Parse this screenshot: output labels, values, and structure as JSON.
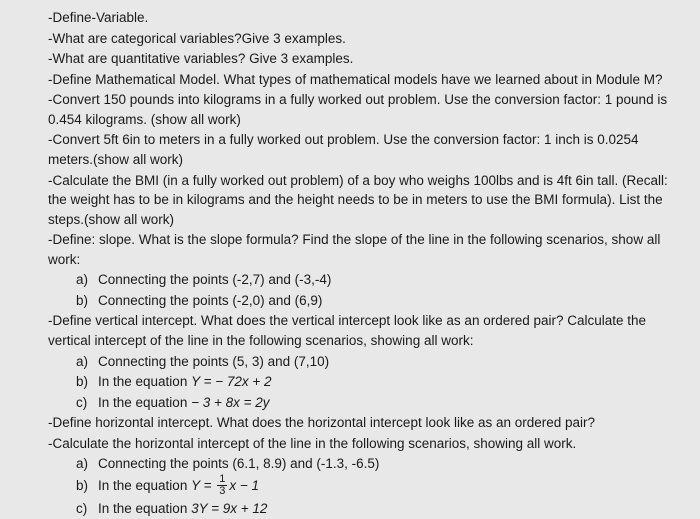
{
  "background_color": "#e8e8e8",
  "text_color": "#1a1a1a",
  "font_size": 13.5,
  "lines": {
    "l1": "-Define-Variable.",
    "l2": "-What are categorical variables?Give 3 examples.",
    "l3": "-What are quantitative variables? Give 3 examples.",
    "l4": "-Define Mathematical Model. What types of mathematical models have we learned about in Module M?",
    "l5": "-Convert 150 pounds into kilograms in a fully worked out problem. Use the conversion factor: 1 pound is 0.454 kilograms. (show all work)",
    "l6": "-Convert 5ft 6in to meters in a fully worked out problem. Use the conversion factor: 1 inch is 0.0254 meters.(show all work)",
    "l7": "-Calculate the BMI (in a fully worked out problem) of a boy who weighs 100lbs and is 4ft 6in tall. (Recall: the weight has to be in kilograms and the height needs to be in meters to use the BMI formula). List the steps.(show all work)",
    "l8": "-Define: slope. What is the slope formula? Find the slope of the line in the following scenarios, show all work:",
    "l8a_label": "a)",
    "l8a": "Connecting the points (-2,7) and (-3,-4)",
    "l8b_label": "b)",
    "l8b": "Connecting the points (-2,0) and (6,9)",
    "l9": "-Define vertical intercept. What does the vertical intercept look like as an ordered pair? Calculate the vertical intercept of the line in the following scenarios, showing all work:",
    "l9a_label": "a)",
    "l9a": "Connecting the points (5, 3) and (7,10)",
    "l9b_label": "b)",
    "l9b_pre": "In the equation ",
    "l9b_eq": "Y =  − 72x + 2",
    "l9c_label": "c)",
    "l9c_pre": "In the equation ",
    "l9c_eq": "− 3 + 8x = 2y",
    "l10": "-Define horizontal intercept. What does the horizontal intercept look like as an ordered pair?",
    "l11": "-Calculate the horizontal intercept of the line in the following scenarios, showing all work.",
    "l11a_label": "a)",
    "l11a": "Connecting the points (6.1, 8.9) and (-1.3, -6.5)",
    "l11b_label": "b)",
    "l11b_pre": "In the equation ",
    "l11b_Y": "Y = ",
    "l11b_num": "1",
    "l11b_den": "3",
    "l11b_post": "x − 1",
    "l11c_label": "c)",
    "l11c_pre": "In the equation ",
    "l11c_eq": "3Y = 9x + 12"
  }
}
